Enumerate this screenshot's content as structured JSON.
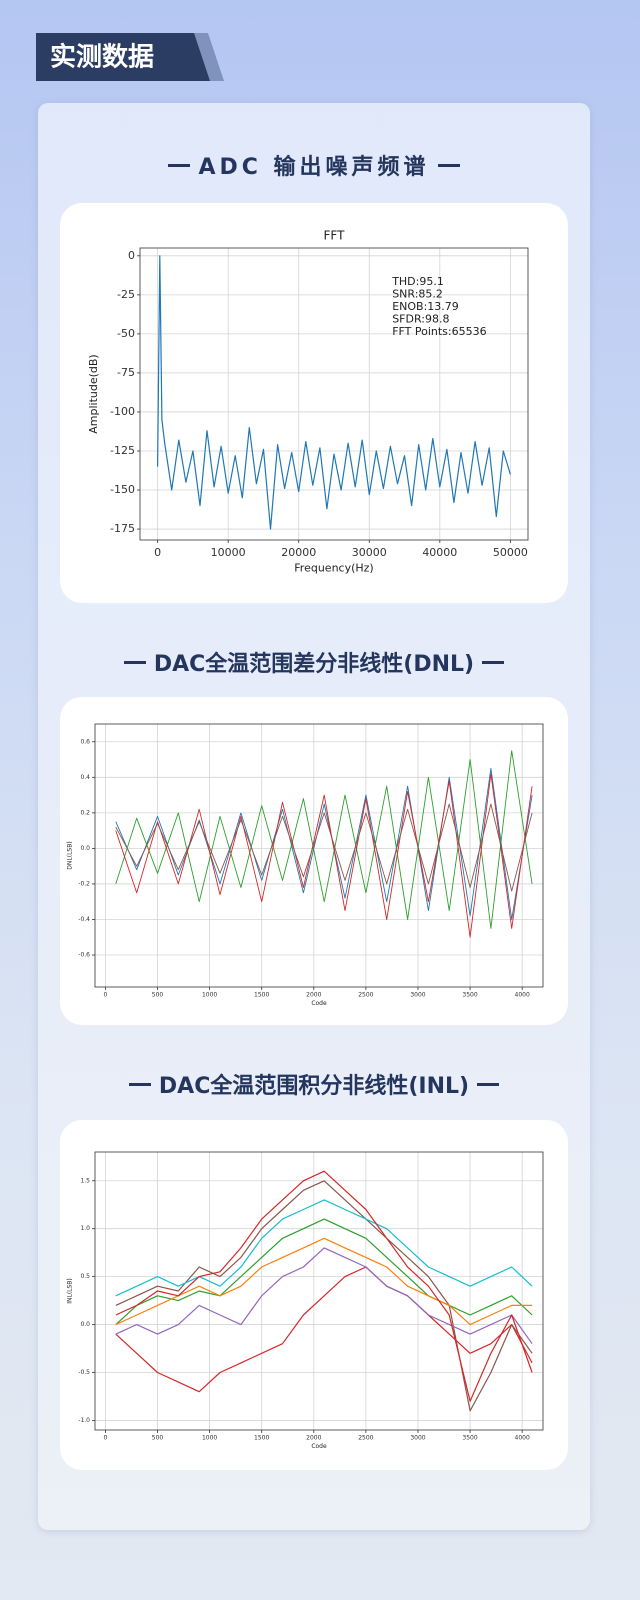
{
  "header": {
    "title": "实测数据"
  },
  "chart_data": [
    {
      "type": "line",
      "heading": "ADC 输出噪声频谱",
      "title": "FFT",
      "xlabel": "Frequency(Hz)",
      "ylabel": "Amplitude(dB)",
      "annotations": [
        "THD:95.1",
        "SNR:85.2",
        "ENOB:13.79",
        "SFDR:98.8",
        "FFT Points:65536"
      ],
      "x": [
        0,
        300,
        600,
        1000,
        2000,
        3000,
        4000,
        5000,
        6000,
        7000,
        8000,
        9000,
        10000,
        11000,
        12000,
        13000,
        14000,
        15000,
        16000,
        17000,
        18000,
        19000,
        20000,
        21000,
        22000,
        23000,
        24000,
        25000,
        26000,
        27000,
        28000,
        29000,
        30000,
        31000,
        32000,
        33000,
        34000,
        35000,
        36000,
        37000,
        38000,
        39000,
        40000,
        41000,
        42000,
        43000,
        44000,
        45000,
        46000,
        47000,
        48000,
        49000,
        50000
      ],
      "series": [
        {
          "color": "#1f77b4",
          "values": [
            -135,
            0,
            -105,
            -120,
            -150,
            -118,
            -145,
            -125,
            -160,
            -112,
            -148,
            -122,
            -152,
            -128,
            -155,
            -110,
            -146,
            -124,
            -175,
            -121,
            -149,
            -126,
            -151,
            -119,
            -147,
            -123,
            -162,
            -127,
            -150,
            -120,
            -148,
            -118,
            -153,
            -125,
            -149,
            -122,
            -146,
            -128,
            -160,
            -121,
            -150,
            -117,
            -148,
            -124,
            -158,
            -126,
            -152,
            -119,
            -147,
            -123,
            -167,
            -125,
            -140
          ]
        }
      ],
      "xlim": [
        -2500,
        52500
      ],
      "ylim": [
        -182,
        5
      ],
      "xticks": [
        0,
        10000,
        20000,
        30000,
        40000,
        50000
      ],
      "yticks": [
        0,
        -25,
        -50,
        -75,
        -100,
        -125,
        -150,
        -175
      ],
      "grid": true
    },
    {
      "type": "line",
      "heading": "DAC全温范围差分非线性(DNL)",
      "xlabel": "Code",
      "ylabel": "DNL(LSB)",
      "x": [
        100,
        300,
        500,
        700,
        900,
        1100,
        1300,
        1500,
        1700,
        1900,
        2100,
        2300,
        2500,
        2700,
        2900,
        3100,
        3300,
        3500,
        3700,
        3900,
        4095
      ],
      "series": [
        {
          "color": "#1f77b4",
          "values": [
            0.15,
            -0.12,
            0.18,
            -0.15,
            0.16,
            -0.2,
            0.2,
            -0.18,
            0.22,
            -0.25,
            0.25,
            -0.28,
            0.3,
            -0.3,
            0.35,
            -0.35,
            0.4,
            -0.38,
            0.45,
            -0.4,
            0.3
          ]
        },
        {
          "color": "#2ca02c",
          "values": [
            -0.2,
            0.17,
            -0.14,
            0.2,
            -0.3,
            0.18,
            -0.22,
            0.24,
            -0.18,
            0.28,
            -0.3,
            0.3,
            -0.25,
            0.35,
            -0.4,
            0.4,
            -0.35,
            0.5,
            -0.45,
            0.55,
            -0.2
          ]
        },
        {
          "color": "#d62728",
          "values": [
            0.1,
            -0.25,
            0.15,
            -0.2,
            0.22,
            -0.26,
            0.18,
            -0.3,
            0.26,
            -0.22,
            0.3,
            -0.35,
            0.28,
            -0.4,
            0.32,
            -0.3,
            0.38,
            -0.5,
            0.42,
            -0.45,
            0.35
          ]
        },
        {
          "color": "#8c564b",
          "values": [
            0.12,
            -0.1,
            0.14,
            -0.12,
            0.15,
            -0.14,
            0.16,
            -0.15,
            0.18,
            -0.16,
            0.2,
            -0.18,
            0.2,
            -0.2,
            0.22,
            -0.2,
            0.25,
            -0.22,
            0.25,
            -0.24,
            0.2
          ]
        }
      ],
      "xlim": [
        -100,
        4200
      ],
      "ylim": [
        -0.78,
        0.7
      ],
      "xticks": [
        0,
        500,
        1000,
        1500,
        2000,
        2500,
        3000,
        3500,
        4000
      ],
      "yticks": [
        0.6,
        0.4,
        0.2,
        {
          "value": 0,
          "label": "0.0"
        },
        -0.2,
        -0.4,
        -0.6
      ],
      "grid": true
    },
    {
      "type": "line",
      "heading": "DAC全温范围积分非线性(INL)",
      "xlabel": "Code",
      "ylabel": "INL(LSB)",
      "x": [
        100,
        300,
        500,
        700,
        900,
        1100,
        1300,
        1500,
        1700,
        1900,
        2100,
        2300,
        2500,
        2700,
        2900,
        3100,
        3300,
        3500,
        3700,
        3900,
        4095
      ],
      "series": [
        {
          "color": "#d62728",
          "values": [
            -0.1,
            -0.3,
            -0.5,
            -0.6,
            -0.7,
            -0.5,
            -0.4,
            -0.3,
            -0.2,
            0.1,
            0.3,
            0.5,
            0.6,
            0.4,
            0.3,
            0.1,
            -0.1,
            -0.3,
            -0.2,
            0.0,
            -0.4
          ]
        },
        {
          "color": "#8c564b",
          "values": [
            0.2,
            0.3,
            0.4,
            0.35,
            0.6,
            0.5,
            0.7,
            1.0,
            1.2,
            1.4,
            1.5,
            1.3,
            1.1,
            0.9,
            0.7,
            0.5,
            0.2,
            -0.9,
            -0.5,
            0.0,
            -0.3
          ]
        },
        {
          "color": "#17becf",
          "values": [
            0.3,
            0.4,
            0.5,
            0.4,
            0.5,
            0.4,
            0.6,
            0.9,
            1.1,
            1.2,
            1.3,
            1.2,
            1.1,
            1.0,
            0.8,
            0.6,
            0.5,
            0.4,
            0.5,
            0.6,
            0.4
          ]
        },
        {
          "color": "#2ca02c",
          "values": [
            0.0,
            0.2,
            0.3,
            0.25,
            0.35,
            0.3,
            0.5,
            0.7,
            0.9,
            1.0,
            1.1,
            1.0,
            0.9,
            0.7,
            0.5,
            0.3,
            0.2,
            0.1,
            0.2,
            0.3,
            0.1
          ]
        },
        {
          "color": "#ff7f0e",
          "values": [
            0.0,
            0.1,
            0.2,
            0.3,
            0.4,
            0.3,
            0.4,
            0.6,
            0.7,
            0.8,
            0.9,
            0.8,
            0.7,
            0.6,
            0.4,
            0.3,
            0.2,
            0.0,
            0.1,
            0.2,
            0.2
          ]
        },
        {
          "color": "#9467bd",
          "values": [
            -0.1,
            0.0,
            -0.1,
            0.0,
            0.2,
            0.1,
            0.0,
            0.3,
            0.5,
            0.6,
            0.8,
            0.7,
            0.6,
            0.4,
            0.3,
            0.1,
            0.0,
            -0.1,
            0.0,
            0.1,
            -0.2
          ]
        },
        {
          "color": "#d62728",
          "values": [
            0.1,
            0.2,
            0.35,
            0.3,
            0.5,
            0.55,
            0.8,
            1.1,
            1.3,
            1.5,
            1.6,
            1.4,
            1.2,
            0.9,
            0.6,
            0.4,
            0.1,
            -0.8,
            -0.3,
            0.1,
            -0.5
          ]
        }
      ],
      "xlim": [
        -100,
        4200
      ],
      "ylim": [
        -1.1,
        1.8
      ],
      "xticks": [
        0,
        500,
        1000,
        1500,
        2000,
        2500,
        3000,
        3500,
        4000
      ],
      "yticks": [
        1.5,
        {
          "value": 1,
          "label": "1.0"
        },
        0.5,
        {
          "value": 0,
          "label": "0.0"
        },
        -0.5,
        {
          "value": -1,
          "label": "-1.0"
        }
      ],
      "grid": true
    }
  ]
}
